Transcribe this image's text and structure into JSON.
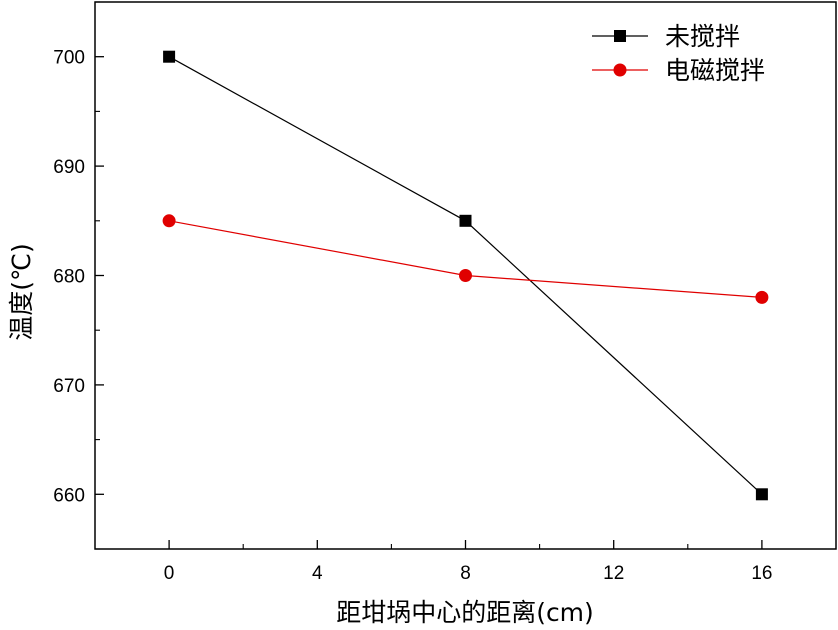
{
  "chart_data": {
    "type": "line",
    "xlabel": "距坩埚中心的距离(cm)",
    "ylabel": "温度(℃)",
    "x": [
      0,
      8,
      16
    ],
    "xlim": [
      -2,
      18
    ],
    "ylim": [
      655,
      705
    ],
    "x_ticks": [
      "0",
      "4",
      "8",
      "12",
      "16"
    ],
    "y_ticks": [
      "660",
      "670",
      "680",
      "690",
      "700"
    ],
    "grid": false,
    "legend_position": "top-right",
    "series": [
      {
        "name": "未搅拌",
        "values": [
          700,
          685,
          660
        ],
        "color": "#000000",
        "marker": "square"
      },
      {
        "name": "电磁搅拌",
        "values": [
          685,
          680,
          678
        ],
        "color": "#e00000",
        "marker": "circle"
      }
    ]
  }
}
